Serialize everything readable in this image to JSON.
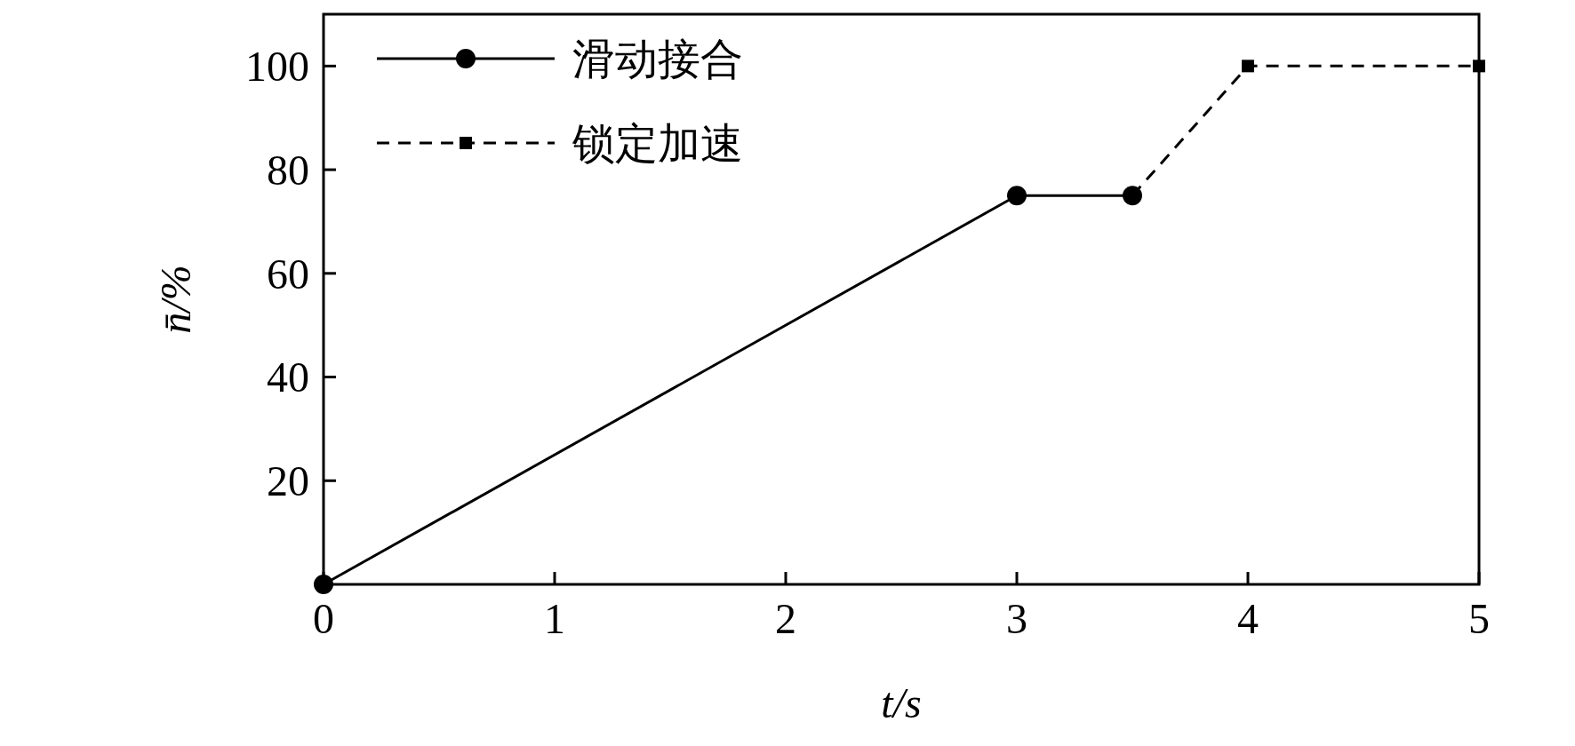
{
  "chart_data": {
    "type": "line",
    "xlabel": "t/s",
    "ylabel": "n̄/%",
    "series": [
      {
        "name": "滑动接合",
        "color": "#000000",
        "x": [
          0,
          3,
          3.5
        ],
        "values": [
          0,
          75,
          75
        ],
        "marker": "circle",
        "line_style": "solid"
      },
      {
        "name": "锁定加速",
        "color": "#000000",
        "x": [
          3.5,
          4,
          5
        ],
        "values": [
          75,
          100,
          100
        ],
        "marker": "square",
        "line_style": "dashed"
      }
    ],
    "xlim": [
      0,
      5
    ],
    "xticks": [
      0,
      1,
      2,
      3,
      4,
      5
    ],
    "ylim": [
      0,
      110
    ],
    "yticks": [
      20,
      40,
      60,
      80,
      100
    ],
    "grid": false,
    "legend": "top left"
  }
}
